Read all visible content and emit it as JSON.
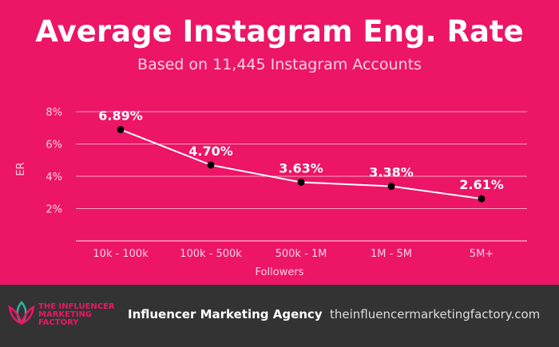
{
  "chart_data": {
    "type": "line",
    "title": "Average Instagram Eng. Rate",
    "subtitle": "Based on 11,445 Instagram Accounts",
    "xlabel": "Followers",
    "ylabel": "ER",
    "categories": [
      "10k - 100k",
      "100k - 500k",
      "500k - 1M",
      "1M - 5M",
      "5M+"
    ],
    "values": [
      6.89,
      4.7,
      3.63,
      3.38,
      2.61
    ],
    "data_labels": [
      "6.89%",
      "4.70%",
      "3.63%",
      "3.38%",
      "2.61%"
    ],
    "yticks": [
      {
        "v": 2,
        "label": "2%"
      },
      {
        "v": 4,
        "label": "4%"
      },
      {
        "v": 6,
        "label": "6%"
      },
      {
        "v": 8,
        "label": "8%"
      }
    ],
    "ylim": [
      0,
      8
    ],
    "grid": true,
    "colors": {
      "background": "#ec1566",
      "line": "#ffffff",
      "marker": "#000000",
      "grid": "#f6a0c0"
    }
  },
  "footer": {
    "logo_text": "THE INFLUENCER MARKETING FACTORY",
    "agency": "Influencer Marketing Agency",
    "url": "theinfluencermarketingfactory.com"
  }
}
